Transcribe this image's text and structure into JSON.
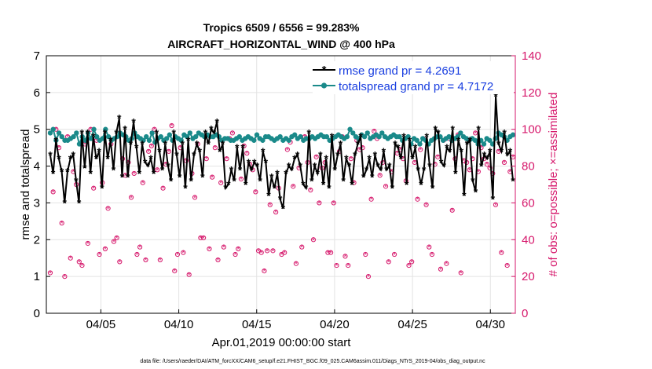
{
  "chart_data": {
    "type": "line",
    "title_line1": "Tropics 6509 / 6556 = 99.283%",
    "title_line2": "AIRCRAFT_HORIZONTAL_WIND @ 400 hPa",
    "ylabel_left": "rmse and totalspread",
    "ylabel_right": "# of obs: o=possible; ×=assimilated",
    "xlabel": "Apr.01,2019 00:00:00 start",
    "footer": "data file: /Users/raeder/DAI/ATM_forcXX/CAM6_setup/f.e21.FHIST_BGC.f09_025.CAM6assim.011/Diags_NTrS_2019-04/obs_diag_output.nc",
    "ylim_left": [
      0,
      7
    ],
    "ylim_right": [
      0,
      140
    ],
    "xlim_days": [
      0.5,
      30.6
    ],
    "yticks_left": [
      "0",
      "1",
      "2",
      "3",
      "4",
      "5",
      "6",
      "7"
    ],
    "yticks_right": [
      "0",
      "20",
      "40",
      "60",
      "80",
      "100",
      "120",
      "140"
    ],
    "xticks": [
      {
        "day": 4,
        "label": "04/05"
      },
      {
        "day": 9,
        "label": "04/10"
      },
      {
        "day": 14,
        "label": "04/15"
      },
      {
        "day": 19,
        "label": "04/20"
      },
      {
        "day": 24,
        "label": "04/25"
      },
      {
        "day": 29,
        "label": "04/30"
      }
    ],
    "colors": {
      "rmse": "#000000",
      "spread": "#1a8a8a",
      "obs": "#d6176b",
      "legend_text": "#1a3fe0"
    },
    "series": [
      {
        "name": "rmse grand pr = 4.2691",
        "key": "rmse",
        "values": [
          4.3,
          3.8,
          4.7,
          4.2,
          3.85,
          3.0,
          3.85,
          4.2,
          4.3,
          3.6,
          3.0,
          4.9,
          3.95,
          4.9,
          3.8,
          4.8,
          4.2,
          4.4,
          3.4,
          4.9,
          4.2,
          4.7,
          3.9,
          4.9,
          5.3,
          3.7,
          5.0,
          3.7,
          4.6,
          5.2,
          4.5,
          3.8,
          4.6,
          4.1,
          4.0,
          4.2,
          3.8,
          4.9,
          4.4,
          3.9,
          4.6,
          4.0,
          3.6,
          4.9,
          4.3,
          3.7,
          4.6,
          3.4,
          4.7,
          3.6,
          4.3,
          4.6,
          4.4,
          3.7,
          4.9,
          4.6,
          5.0,
          4.9,
          5.2,
          4.4,
          4.6,
          3.4,
          3.5,
          3.9,
          3.6,
          4.5,
          3.9,
          4.5,
          3.5,
          4.1,
          3.9,
          4.1,
          4.0,
          3.6,
          4.4,
          4.1,
          3.2,
          3.7,
          3.4,
          3.8,
          3.1,
          2.85,
          3.8,
          4.0,
          3.9,
          4.2,
          4.3,
          4.0,
          3.5,
          3.4,
          4.9,
          3.6,
          4.0,
          3.8,
          4.3,
          3.5,
          4.2,
          3.4,
          4.8,
          3.9,
          4.3,
          4.6,
          3.6,
          4.2,
          4.0,
          3.5,
          4.3,
          4.6,
          4.8,
          3.7,
          3.9,
          4.2,
          3.7,
          4.3,
          4.0,
          3.9,
          4.4,
          3.9,
          4.0,
          3.4,
          4.6,
          4.5,
          4.2,
          4.8,
          3.5,
          4.7,
          4.2,
          4.5,
          3.9,
          3.5,
          3.9,
          4.8,
          4.0,
          3.4,
          5.0,
          4.9,
          4.1,
          4.0,
          4.5,
          4.4,
          5.0,
          3.8,
          4.7,
          4.4,
          3.2,
          4.6,
          4.7,
          3.6,
          3.3,
          5.0,
          4.0,
          4.3,
          4.2,
          4.4,
          3.1,
          5.9,
          4.6,
          4.4,
          4.9,
          4.3,
          4.4,
          3.6
        ]
      },
      {
        "name": "totalspread grand pr = 4.7172",
        "key": "spread",
        "values": [
          4.9,
          5.0,
          4.7,
          4.9,
          4.8,
          4.7,
          4.7,
          4.75,
          4.8,
          4.9,
          4.6,
          4.8,
          4.7,
          4.9,
          4.75,
          5.0,
          4.8,
          4.7,
          4.75,
          5.0,
          4.8,
          4.7,
          4.75,
          4.8,
          4.9,
          4.85,
          4.8,
          4.7,
          4.75,
          4.9,
          4.8,
          4.75,
          4.7,
          4.8,
          4.7,
          4.9,
          4.65,
          4.75,
          4.8,
          4.7,
          4.75,
          4.85,
          4.7,
          4.8,
          4.75,
          4.7,
          4.85,
          4.8,
          4.9,
          4.75,
          4.8,
          4.9,
          4.85,
          4.8,
          4.85,
          4.8,
          4.8,
          4.85,
          4.8,
          4.7,
          4.75,
          4.75,
          4.7,
          4.7,
          4.75,
          4.8,
          4.7,
          4.75,
          4.8,
          4.75,
          4.7,
          4.85,
          4.75,
          4.7,
          4.8,
          4.8,
          4.75,
          4.7,
          4.75,
          4.8,
          4.7,
          4.75,
          4.7,
          4.8,
          4.85,
          4.75,
          4.8,
          4.7,
          4.75,
          4.75,
          4.8,
          4.75,
          4.8,
          4.85,
          4.8,
          4.8,
          4.7,
          4.75,
          4.8,
          4.85,
          4.8,
          4.75,
          4.8,
          5.0,
          4.9,
          4.8,
          4.75,
          4.85,
          4.8,
          4.9,
          4.75,
          4.8,
          4.85,
          4.8,
          4.9,
          4.8,
          4.75,
          4.8,
          4.85,
          4.8,
          4.8,
          4.7,
          4.75,
          4.8,
          4.6,
          4.75,
          4.7,
          4.6,
          4.75,
          4.7,
          4.6,
          4.7,
          4.75,
          4.8,
          4.8,
          4.7,
          4.75,
          4.8,
          4.7,
          4.75,
          4.8,
          4.9,
          4.8,
          4.75,
          4.7,
          4.75,
          4.7,
          4.6,
          4.7,
          4.6,
          4.75,
          4.7,
          4.6,
          4.75,
          4.9,
          4.85,
          4.8,
          4.7,
          4.8,
          4.85
        ]
      }
    ],
    "obs_possible": [
      22,
      66,
      100,
      90,
      49,
      20,
      96,
      30,
      77,
      70,
      28,
      26,
      92,
      38,
      100,
      68,
      94,
      32,
      71,
      35,
      57,
      92,
      39,
      41,
      28,
      84,
      75,
      82,
      63,
      76,
      32,
      36,
      71,
      29,
      88,
      91,
      100,
      78,
      29,
      68,
      81,
      88,
      102,
      23,
      32,
      90,
      33,
      83,
      21,
      76,
      63,
      92,
      41,
      41,
      84,
      35,
      74,
      90,
      29,
      71,
      36,
      84,
      95,
      98,
      32,
      35,
      73,
      91,
      87,
      81,
      78,
      66,
      34,
      33,
      23,
      34,
      59,
      34,
      55,
      68,
      32,
      33,
      89,
      93,
      69,
      27,
      79,
      36,
      96,
      82,
      67,
      40,
      85,
      60,
      79,
      82,
      33,
      33,
      60,
      26,
      88,
      96,
      31,
      26,
      84,
      71,
      94,
      89,
      90,
      32,
      20,
      62,
      99,
      95,
      75,
      82,
      69,
      28,
      77,
      32,
      87,
      89,
      84,
      72,
      26,
      28,
      82,
      62,
      89,
      95,
      59,
      36,
      32,
      81,
      85,
      24,
      94,
      27,
      95,
      56,
      84,
      97,
      22,
      83,
      82,
      78,
      84,
      98,
      77,
      90,
      84,
      81,
      79,
      76,
      59,
      88,
      33,
      82,
      26,
      77,
      85
    ]
  }
}
